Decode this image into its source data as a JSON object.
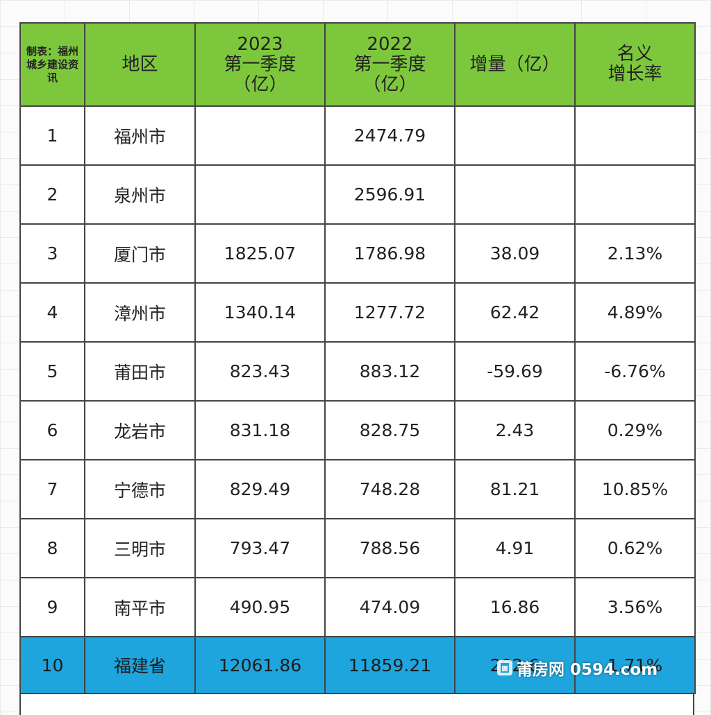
{
  "table": {
    "header": {
      "maker": "制表：福州城乡建设资讯",
      "region": "地区",
      "col2023": [
        "2023",
        "第一季度",
        "（亿）"
      ],
      "col2022": [
        "2022",
        "第一季度",
        "（亿）"
      ],
      "increase": "增量（亿）",
      "growth": [
        "名义",
        "增长率"
      ]
    },
    "rows": [
      {
        "rank": "1",
        "region": "福州市",
        "v2023": "",
        "v2022": "2474.79",
        "increase": "",
        "growth": ""
      },
      {
        "rank": "2",
        "region": "泉州市",
        "v2023": "",
        "v2022": "2596.91",
        "increase": "",
        "growth": ""
      },
      {
        "rank": "3",
        "region": "厦门市",
        "v2023": "1825.07",
        "v2022": "1786.98",
        "increase": "38.09",
        "growth": "2.13%"
      },
      {
        "rank": "4",
        "region": "漳州市",
        "v2023": "1340.14",
        "v2022": "1277.72",
        "increase": "62.42",
        "growth": "4.89%"
      },
      {
        "rank": "5",
        "region": "莆田市",
        "v2023": "823.43",
        "v2022": "883.12",
        "increase": "-59.69",
        "growth": "-6.76%"
      },
      {
        "rank": "6",
        "region": "龙岩市",
        "v2023": "831.18",
        "v2022": "828.75",
        "increase": "2.43",
        "growth": "0.29%"
      },
      {
        "rank": "7",
        "region": "宁德市",
        "v2023": "829.49",
        "v2022": "748.28",
        "increase": "81.21",
        "growth": "10.85%"
      },
      {
        "rank": "8",
        "region": "三明市",
        "v2023": "793.47",
        "v2022": "788.56",
        "increase": "4.91",
        "growth": "0.62%"
      },
      {
        "rank": "9",
        "region": "南平市",
        "v2023": "490.95",
        "v2022": "474.09",
        "increase": "16.86",
        "growth": "3.56%"
      }
    ],
    "total": {
      "rank": "10",
      "region": "福建省",
      "v2023": "12061.86",
      "v2022": "11859.21",
      "increase": "202.6",
      "growth": "1.71%"
    }
  },
  "watermark": "莆房网 0594.com",
  "colors": {
    "header": "#7dc73c",
    "total_row": "#1fa5dd",
    "border": "#444444"
  }
}
